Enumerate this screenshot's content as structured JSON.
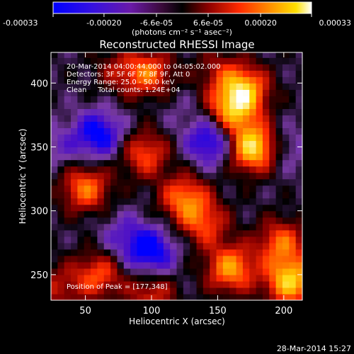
{
  "colorbar": {
    "ticks": [
      "-0.00033",
      "-0.00020",
      "-6.6e-05",
      "6.6e-05",
      "0.00020",
      "0.00033"
    ],
    "tick_values": [
      -0.00033,
      -0.0002,
      -6.6e-05,
      6.6e-05,
      0.0002,
      0.00033
    ],
    "range": [
      -0.00033,
      0.00033
    ],
    "units_label": "(photons cm⁻² s⁻¹ asec⁻²)"
  },
  "chart_data": {
    "type": "heatmap",
    "title": "Reconstructed RHESSI Image",
    "xlabel": "Heliocentric X (arcsec)",
    "ylabel": "Heliocentric Y (arcsec)",
    "xlim": [
      24,
      214
    ],
    "ylim": [
      230,
      424
    ],
    "xticks": [
      50,
      100,
      150,
      200
    ],
    "yticks": [
      250,
      300,
      350,
      400
    ],
    "colormap": [
      "#0000ff",
      "#4b0fc8",
      "#7a3aa6",
      "#000000",
      "#8b0000",
      "#ff2a00",
      "#ff8c00",
      "#ffd700",
      "#ffffff"
    ],
    "annotations": [
      "20-Mar-2014 04:00:44.000 to 04:05:02.000",
      "Detectors: 3F 5F 6F 7F 8F 9F, Att 0",
      "Energy Range: 25.0 - 50.0 keV",
      "Clean     Total counts: 1.24E+04"
    ],
    "peak_label": "Position of Peak = [177,348]",
    "peak": [
      177,
      348
    ],
    "sources": [
      {
        "x": 177,
        "y": 350,
        "value": 0.00033
      },
      {
        "x": 170,
        "y": 395,
        "value": 0.00024
      },
      {
        "x": 160,
        "y": 378,
        "value": 0.0002
      },
      {
        "x": 98,
        "y": 408,
        "value": 0.00016
      },
      {
        "x": 50,
        "y": 318,
        "value": 0.00018
      },
      {
        "x": 95,
        "y": 345,
        "value": 0.00014
      },
      {
        "x": 125,
        "y": 310,
        "value": 0.00018
      },
      {
        "x": 140,
        "y": 290,
        "value": 0.00012
      },
      {
        "x": 160,
        "y": 255,
        "value": 0.00022
      },
      {
        "x": 205,
        "y": 245,
        "value": 0.00028
      },
      {
        "x": 198,
        "y": 275,
        "value": 0.00016
      },
      {
        "x": 60,
        "y": 250,
        "value": 0.00014
      },
      {
        "x": 100,
        "y": 235,
        "value": 0.0001
      },
      {
        "x": 30,
        "y": 240,
        "value": 6e-05
      },
      {
        "x": 150,
        "y": 410,
        "value": 4e-05
      },
      {
        "x": 75,
        "y": 410,
        "value": 4e-05
      },
      {
        "x": 60,
        "y": 360,
        "value": -0.0003
      },
      {
        "x": 145,
        "y": 355,
        "value": -0.0003
      },
      {
        "x": 100,
        "y": 268,
        "value": -0.0003
      },
      {
        "x": 200,
        "y": 350,
        "value": -0.00016
      },
      {
        "x": 30,
        "y": 350,
        "value": -0.00014
      },
      {
        "x": 120,
        "y": 380,
        "value": -0.0001
      },
      {
        "x": 80,
        "y": 280,
        "value": -0.00018
      }
    ]
  },
  "footer": {
    "timestamp": "28-Mar-2014 15:27"
  }
}
